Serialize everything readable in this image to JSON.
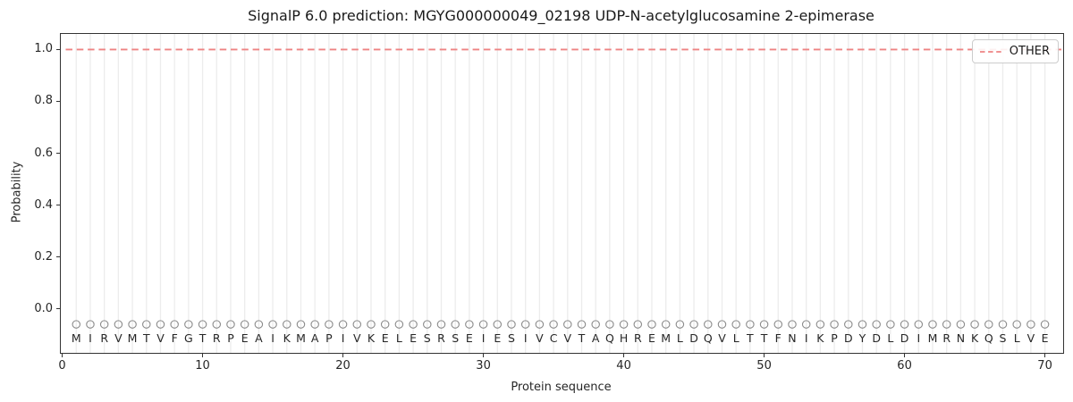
{
  "chart_data": {
    "type": "line",
    "title": "SignalP 6.0 prediction: MGYG000000049_02198 UDP-N-acetylglucosamine 2-epimerase",
    "xlabel": "Protein sequence",
    "ylabel": "Probability",
    "xlim": [
      -0.1,
      71.3
    ],
    "ylim": [
      -0.17,
      1.06
    ],
    "xticks": [
      0,
      10,
      20,
      30,
      40,
      50,
      60,
      70
    ],
    "ytick_labels": [
      "0.0",
      "0.2",
      "0.4",
      "0.6",
      "0.8",
      "1.0"
    ],
    "grid": {
      "vertical_per_residue": true,
      "horizontal": false
    },
    "x": [
      1,
      2,
      3,
      4,
      5,
      6,
      7,
      8,
      9,
      10,
      11,
      12,
      13,
      14,
      15,
      16,
      17,
      18,
      19,
      20,
      21,
      22,
      23,
      24,
      25,
      26,
      27,
      28,
      29,
      30,
      31,
      32,
      33,
      34,
      35,
      36,
      37,
      38,
      39,
      40,
      41,
      42,
      43,
      44,
      45,
      46,
      47,
      48,
      49,
      50,
      51,
      52,
      53,
      54,
      55,
      56,
      57,
      58,
      59,
      60,
      61,
      62,
      63,
      64,
      65,
      66,
      67,
      68,
      69,
      70
    ],
    "sequence": "MIRVMTVFGTRPEAIKMAPIVKELESRSEIESIVCVTAQHREMLDQVLTTFNIKPDYDLDIMRNKQSLVE",
    "series": [
      {
        "name": "OTHER",
        "style": "dashed",
        "color": "#ee8383",
        "values": [
          1,
          1,
          1,
          1,
          1,
          1,
          1,
          1,
          1,
          1,
          1,
          1,
          1,
          1,
          1,
          1,
          1,
          1,
          1,
          1,
          1,
          1,
          1,
          1,
          1,
          1,
          1,
          1,
          1,
          1,
          1,
          1,
          1,
          1,
          1,
          1,
          1,
          1,
          1,
          1,
          1,
          1,
          1,
          1,
          1,
          1,
          1,
          1,
          1,
          1,
          1,
          1,
          1,
          1,
          1,
          1,
          1,
          1,
          1,
          1,
          1,
          1,
          1,
          1,
          1,
          1,
          1,
          1,
          1,
          1
        ]
      }
    ],
    "marker_row": {
      "shape": "circle",
      "y": -0.06,
      "color": "#8c8c8c"
    },
    "letter_row_y": -0.115,
    "legend": {
      "position": "upper right",
      "entries": [
        {
          "label": "OTHER",
          "color": "#ee8383",
          "style": "dashed"
        }
      ]
    },
    "colors": {
      "grid": "#ececec",
      "spine": "#333333",
      "text": "#262626",
      "background": "#ffffff"
    }
  }
}
